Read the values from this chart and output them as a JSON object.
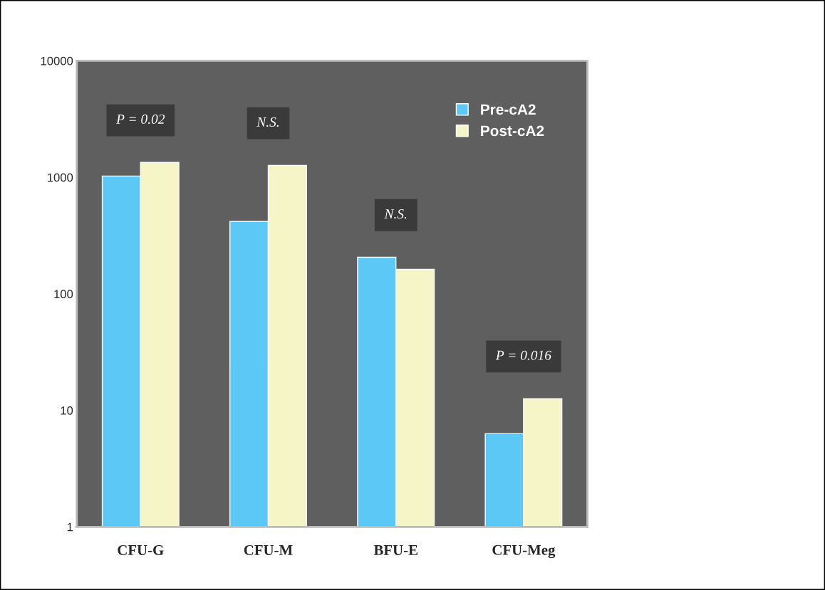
{
  "chart_data": {
    "type": "bar",
    "categories": [
      "CFU-G",
      "CFU-M",
      "BFU-E",
      "CFU-Meg"
    ],
    "series": [
      {
        "name": "Pre-cA2",
        "color": "#5bc8f5",
        "values": [
          1025,
          417,
          206,
          6.3
        ]
      },
      {
        "name": "Post-cA2",
        "color": "#f5f5c8",
        "values": [
          1340,
          1265,
          162,
          12.6
        ]
      }
    ],
    "log": true,
    "ylim": [
      1,
      10000
    ],
    "yticks": [
      1,
      10,
      100,
      1000,
      10000
    ],
    "annotations": [
      "P = 0.02",
      "N.S.",
      "N.S.",
      "P = 0.016"
    ],
    "legend": "top right",
    "grid": false
  }
}
